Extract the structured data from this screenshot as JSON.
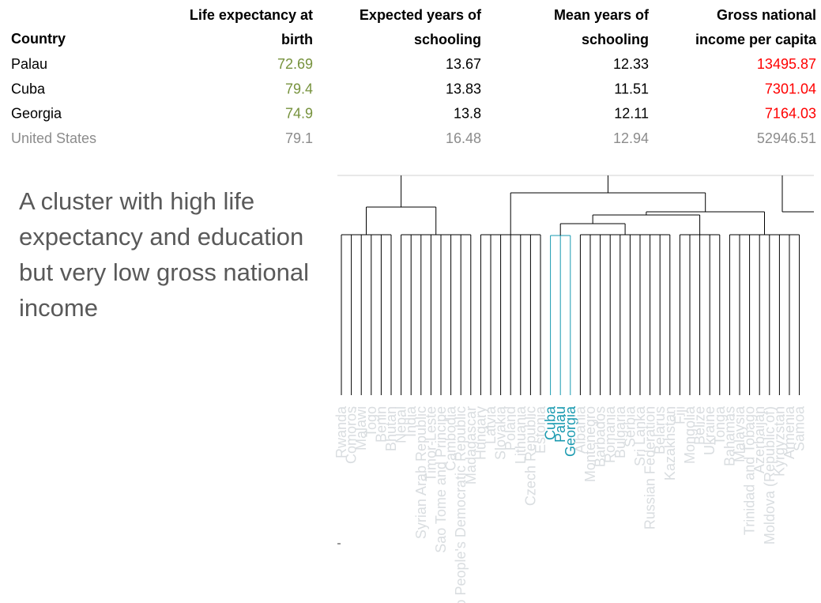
{
  "table": {
    "header": [
      "Country",
      "Life expectancy at birth",
      "Expected years of schooling",
      "Mean years of schooling",
      "Gross national income per capita"
    ],
    "rows": [
      [
        "Palau",
        "72.69",
        "13.67",
        "12.33",
        "13495.87"
      ],
      [
        "Cuba",
        "79.4",
        "13.83",
        "11.51",
        "7301.04"
      ],
      [
        "Georgia",
        "74.9",
        "13.8",
        "12.11",
        "7164.03"
      ],
      [
        "United States",
        "79.1",
        "16.48",
        "12.94",
        "52946.51"
      ]
    ]
  },
  "annotation": "A cluster with high life expectancy and education but very low gross national income",
  "dendrogram": {
    "leaves": [
      {
        "label": "Rwanda",
        "color": "#d9dde0"
      },
      {
        "label": "Comoros",
        "color": "#d9dde0"
      },
      {
        "label": "Malawi",
        "color": "#d9dde0"
      },
      {
        "label": "Togo",
        "color": "#d9dde0"
      },
      {
        "label": "Benin",
        "color": "#d9dde0"
      },
      {
        "label": "Bhutan",
        "color": "#d9dde0"
      },
      {
        "label": "Nepal",
        "color": "#d9dde0"
      },
      {
        "label": "India",
        "color": "#d9dde0"
      },
      {
        "label": "Syrian Arab Republic",
        "color": "#d9dde0"
      },
      {
        "label": "Timor-Leste",
        "color": "#d9dde0"
      },
      {
        "label": "Sao Tome and Principe",
        "color": "#d9dde0"
      },
      {
        "label": "Cambodia",
        "color": "#d9dde0"
      },
      {
        "label": "Lao People's Democratic Republic",
        "color": "#d9dde0"
      },
      {
        "label": "Madagascar",
        "color": "#d9dde0"
      },
      {
        "label": "Hungary",
        "color": "#d9dde0"
      },
      {
        "label": "Latvia",
        "color": "#d9dde0"
      },
      {
        "label": "Slovakia",
        "color": "#d9dde0"
      },
      {
        "label": "Poland",
        "color": "#d9dde0"
      },
      {
        "label": "Lithuania",
        "color": "#d9dde0"
      },
      {
        "label": "Czech Republic",
        "color": "#d9dde0"
      },
      {
        "label": "Estonia",
        "color": "#d9dde0"
      },
      {
        "label": "Cuba",
        "color": "#1a9ab0"
      },
      {
        "label": "Palau",
        "color": "#1a9ab0"
      },
      {
        "label": "Georgia",
        "color": "#1a9ab0"
      },
      {
        "label": "Albania",
        "color": "#d9dde0"
      },
      {
        "label": "Montenegro",
        "color": "#d9dde0"
      },
      {
        "label": "Barbados",
        "color": "#d9dde0"
      },
      {
        "label": "Romania",
        "color": "#d9dde0"
      },
      {
        "label": "Bulgaria",
        "color": "#d9dde0"
      },
      {
        "label": "Serbia",
        "color": "#d9dde0"
      },
      {
        "label": "Sri Lanka",
        "color": "#d9dde0"
      },
      {
        "label": "Russian Federation",
        "color": "#d9dde0"
      },
      {
        "label": "Belarus",
        "color": "#d9dde0"
      },
      {
        "label": "Kazakhstan",
        "color": "#d9dde0"
      },
      {
        "label": "Fiji",
        "color": "#d9dde0"
      },
      {
        "label": "Mongolia",
        "color": "#d9dde0"
      },
      {
        "label": "Belize",
        "color": "#d9dde0"
      },
      {
        "label": "Ukraine",
        "color": "#d9dde0"
      },
      {
        "label": "Tonga",
        "color": "#d9dde0"
      },
      {
        "label": "Bahamas",
        "color": "#d9dde0"
      },
      {
        "label": "Malaysia",
        "color": "#d9dde0"
      },
      {
        "label": "Trinidad and Tobago",
        "color": "#d9dde0"
      },
      {
        "label": "Azerbaijan",
        "color": "#d9dde0"
      },
      {
        "label": "Moldova (Republic of)",
        "color": "#d9dde0"
      },
      {
        "label": "Kyrgyzstan",
        "color": "#d9dde0"
      },
      {
        "label": "Armenia",
        "color": "#d9dde0"
      },
      {
        "label": "Samoa",
        "color": "#d9dde0"
      }
    ]
  }
}
